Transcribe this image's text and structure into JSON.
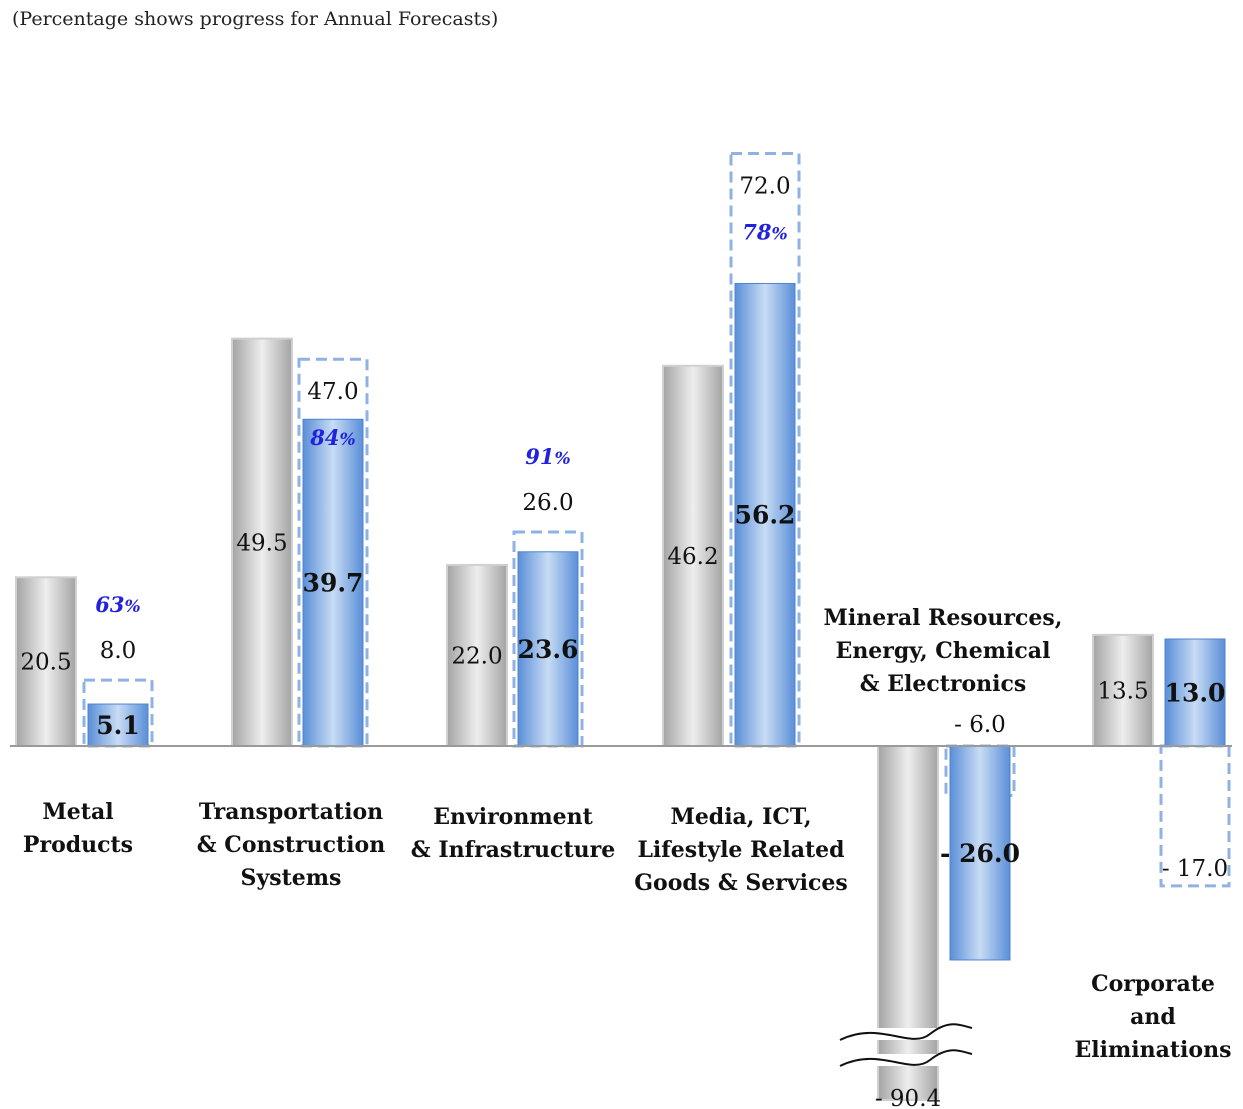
{
  "note": "(Percentage shows progress for Annual Forecasts)",
  "chart_data": {
    "type": "bar",
    "categories": [
      "Metal\nProducts",
      "Transportation\n& Construction\nSystems",
      "Environment\n& Infrastructure",
      "Media, ICT,\nLifestyle Related\nGoods & Services",
      "Mineral Resources,\nEnergy, Chemical\n& Electronics",
      "Corporate and\nEliminations"
    ],
    "series": [
      {
        "values": [
          20.5,
          49.5,
          22.0,
          46.2,
          -90.4,
          13.5
        ],
        "labels": [
          "20.5",
          "49.5",
          "22.0",
          "46.2",
          "- 90.4",
          "13.5"
        ],
        "color": "#b5b5b5"
      },
      {
        "values": [
          5.1,
          39.7,
          23.6,
          56.2,
          -26.0,
          13.0
        ],
        "labels": [
          "5.1",
          "39.7",
          "23.6",
          "56.2",
          "- 26.0",
          "13.0"
        ],
        "color": "#5b8fd6"
      },
      {
        "values": [
          8.0,
          47.0,
          26.0,
          72.0,
          -6.0,
          -17.0
        ],
        "labels": [
          "8.0",
          "47.0",
          "26.0",
          "72.0",
          "- 6.0",
          "- 17.0"
        ],
        "color": "#8fb2e3"
      }
    ],
    "progress": [
      "63%",
      "84%",
      "91%",
      "78%",
      "",
      ""
    ],
    "axis_break": true
  }
}
